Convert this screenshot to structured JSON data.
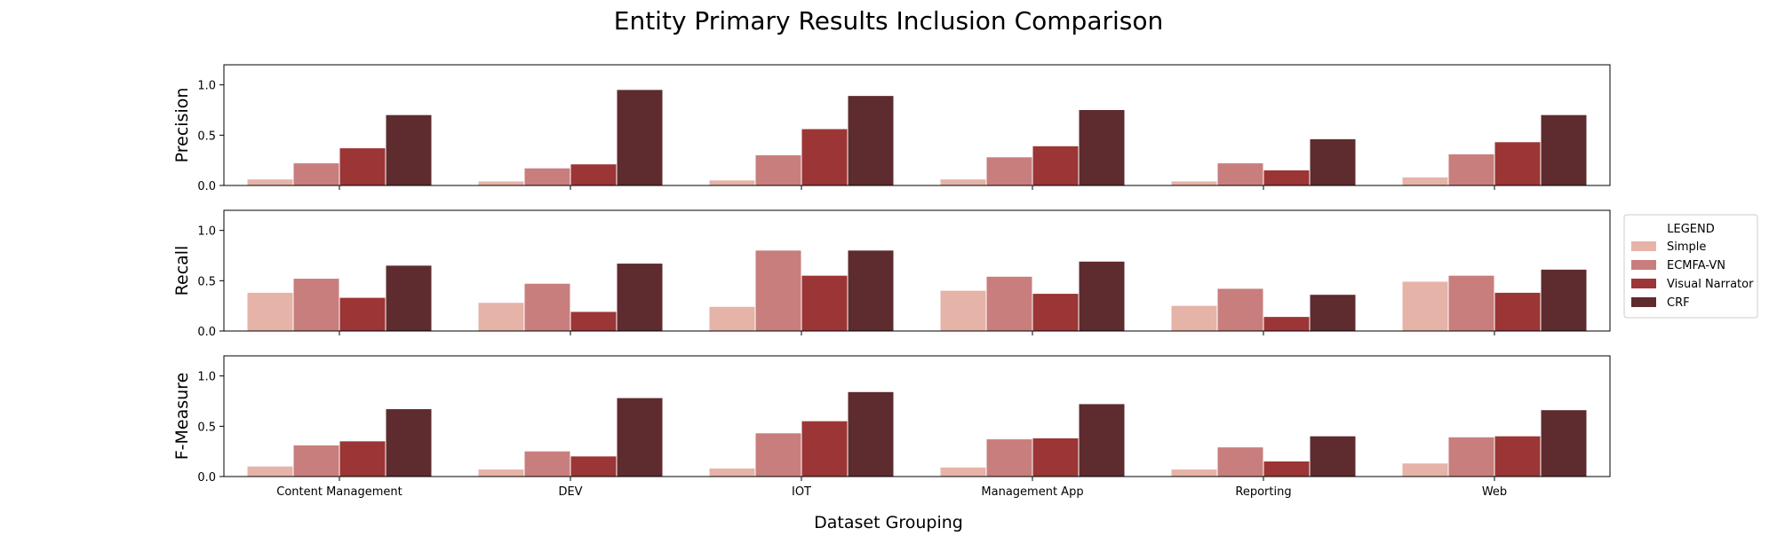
{
  "chart_data": {
    "type": "bar",
    "title": "Entity Primary Results Inclusion Comparison",
    "xlabel": "Dataset Grouping",
    "categories": [
      "Content Management",
      "DEV",
      "IOT",
      "Management App",
      "Reporting",
      "Web"
    ],
    "ylim": [
      0,
      1.2
    ],
    "yticks": [
      "0.0",
      "0.5",
      "1.0"
    ],
    "grid": false,
    "legend": {
      "title": "LEGEND",
      "placement": "right",
      "entries": [
        "Simple",
        "ECMFA-VN",
        "Visual Narrator",
        "CRF"
      ]
    },
    "colors": {
      "Simple": "#e6b3a8",
      "ECMFA-VN": "#c87e7d",
      "Visual Narrator": "#9c3535",
      "CRF": "#5e2b2e"
    },
    "panels": [
      {
        "ylabel": "Precision",
        "series": [
          {
            "name": "Simple",
            "values": [
              0.06,
              0.04,
              0.05,
              0.06,
              0.04,
              0.08
            ]
          },
          {
            "name": "ECMFA-VN",
            "values": [
              0.22,
              0.17,
              0.3,
              0.28,
              0.22,
              0.31
            ]
          },
          {
            "name": "Visual Narrator",
            "values": [
              0.37,
              0.21,
              0.56,
              0.39,
              0.15,
              0.43
            ]
          },
          {
            "name": "CRF",
            "values": [
              0.7,
              0.95,
              0.89,
              0.75,
              0.46,
              0.7
            ]
          }
        ]
      },
      {
        "ylabel": "Recall",
        "series": [
          {
            "name": "Simple",
            "values": [
              0.38,
              0.28,
              0.24,
              0.4,
              0.25,
              0.49
            ]
          },
          {
            "name": "ECMFA-VN",
            "values": [
              0.52,
              0.47,
              0.8,
              0.54,
              0.42,
              0.55
            ]
          },
          {
            "name": "Visual Narrator",
            "values": [
              0.33,
              0.19,
              0.55,
              0.37,
              0.14,
              0.38
            ]
          },
          {
            "name": "CRF",
            "values": [
              0.65,
              0.67,
              0.8,
              0.69,
              0.36,
              0.61
            ]
          }
        ]
      },
      {
        "ylabel": "F-Measure",
        "series": [
          {
            "name": "Simple",
            "values": [
              0.1,
              0.07,
              0.08,
              0.09,
              0.07,
              0.13
            ]
          },
          {
            "name": "ECMFA-VN",
            "values": [
              0.31,
              0.25,
              0.43,
              0.37,
              0.29,
              0.39
            ]
          },
          {
            "name": "Visual Narrator",
            "values": [
              0.35,
              0.2,
              0.55,
              0.38,
              0.15,
              0.4
            ]
          },
          {
            "name": "CRF",
            "values": [
              0.67,
              0.78,
              0.84,
              0.72,
              0.4,
              0.66
            ]
          }
        ]
      }
    ]
  }
}
